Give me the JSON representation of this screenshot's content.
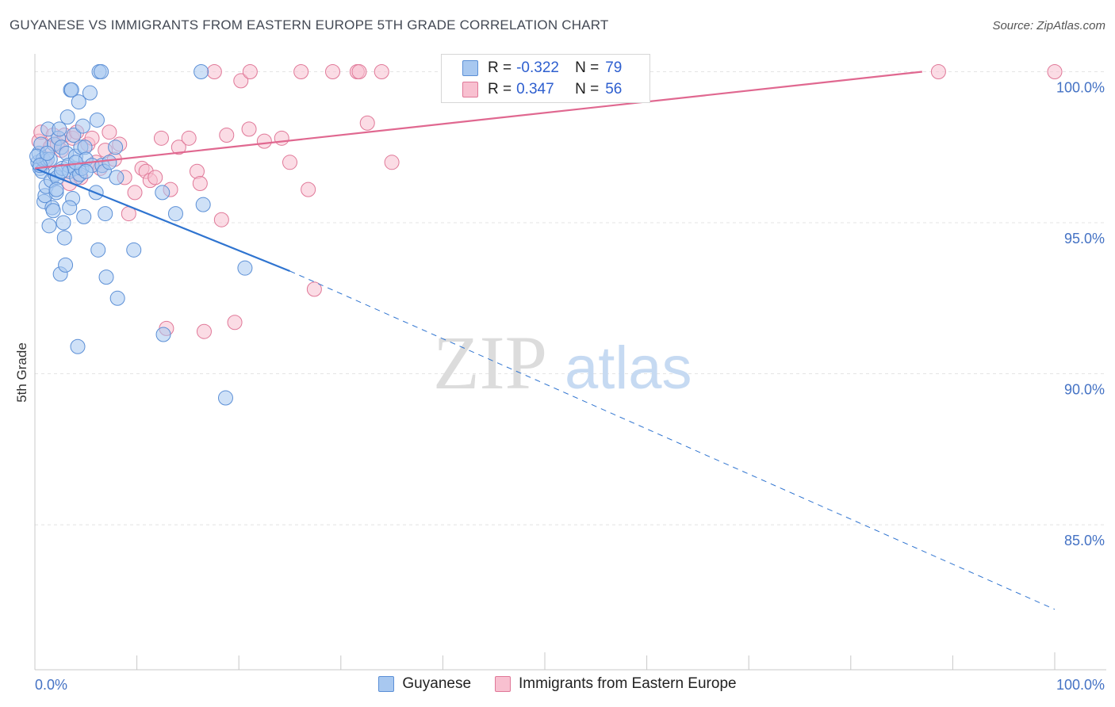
{
  "title": "GUYANESE VS IMMIGRANTS FROM EASTERN EUROPE 5TH GRADE CORRELATION CHART",
  "source": "Source: ZipAtlas.com",
  "watermark": {
    "zip": "ZIP",
    "atlas": "atlas"
  },
  "legend": {
    "r_label": "R =",
    "n_label": "N =",
    "rows": [
      {
        "name": "Guyanese",
        "r": "-0.322",
        "n": "79",
        "color": "#a8c8f0",
        "border": "#5b8fd6"
      },
      {
        "name": "Immigrants from Eastern Europe",
        "r": "0.347",
        "n": "56",
        "color": "#f8c0d0",
        "border": "#e07898"
      }
    ]
  },
  "chart_data": {
    "type": "scatter",
    "title": "GUYANESE VS IMMIGRANTS FROM EASTERN EUROPE 5TH GRADE CORRELATION CHART",
    "xlabel": "",
    "ylabel": "5th Grade",
    "xlim": [
      0,
      100
    ],
    "ylim": [
      80.2,
      100.8
    ],
    "x_tick_labels": [
      "0.0%",
      "100.0%"
    ],
    "y_ticks": [
      100,
      95,
      90,
      85
    ],
    "y_tick_labels": [
      "100.0%",
      "95.0%",
      "90.0%",
      "85.0%"
    ],
    "grid": true,
    "colors": {
      "guyanese": "#2f74d0",
      "eastern_europe": "#e06890"
    },
    "series": [
      {
        "name": "Guyanese",
        "color": "#a8c8f0",
        "border": "#5b8fd6",
        "points": [
          [
            0.3,
            97.0
          ],
          [
            0.4,
            97.3
          ],
          [
            0.5,
            96.8
          ],
          [
            0.6,
            97.6
          ],
          [
            0.7,
            96.7
          ],
          [
            0.8,
            97.1
          ],
          [
            0.9,
            95.7
          ],
          [
            1.0,
            95.9
          ],
          [
            1.1,
            96.2
          ],
          [
            1.2,
            97.1
          ],
          [
            1.3,
            98.1
          ],
          [
            1.4,
            94.9
          ],
          [
            1.5,
            97.1
          ],
          [
            1.6,
            96.4
          ],
          [
            1.7,
            95.5
          ],
          [
            1.8,
            95.4
          ],
          [
            1.9,
            97.6
          ],
          [
            2.0,
            96.6
          ],
          [
            2.1,
            96.0
          ],
          [
            2.2,
            96.5
          ],
          [
            2.3,
            97.8
          ],
          [
            2.4,
            98.1
          ],
          [
            2.5,
            93.3
          ],
          [
            2.6,
            97.5
          ],
          [
            2.7,
            96.8
          ],
          [
            2.8,
            95.0
          ],
          [
            2.9,
            94.5
          ],
          [
            3.0,
            93.6
          ],
          [
            3.1,
            97.3
          ],
          [
            3.2,
            98.5
          ],
          [
            3.3,
            96.9
          ],
          [
            3.4,
            96.7
          ],
          [
            3.5,
            99.4
          ],
          [
            3.6,
            99.4
          ],
          [
            3.7,
            95.8
          ],
          [
            3.8,
            97.9
          ],
          [
            3.9,
            96.8
          ],
          [
            4.0,
            97.2
          ],
          [
            4.1,
            96.5
          ],
          [
            4.2,
            90.9
          ],
          [
            4.3,
            99.0
          ],
          [
            4.4,
            96.6
          ],
          [
            4.5,
            97.5
          ],
          [
            4.6,
            96.8
          ],
          [
            4.7,
            98.2
          ],
          [
            4.8,
            95.2
          ],
          [
            4.9,
            97.5
          ],
          [
            5.0,
            97.1
          ],
          [
            5.4,
            99.3
          ],
          [
            5.6,
            96.9
          ],
          [
            6.0,
            96.0
          ],
          [
            6.1,
            98.4
          ],
          [
            6.2,
            94.1
          ],
          [
            6.3,
            100.0
          ],
          [
            6.5,
            100.0
          ],
          [
            6.6,
            96.9
          ],
          [
            6.8,
            96.7
          ],
          [
            6.9,
            95.3
          ],
          [
            7.0,
            93.2
          ],
          [
            7.3,
            97.0
          ],
          [
            7.9,
            97.5
          ],
          [
            8.0,
            96.5
          ],
          [
            8.1,
            92.5
          ],
          [
            9.7,
            94.1
          ],
          [
            12.5,
            96.0
          ],
          [
            12.6,
            91.3
          ],
          [
            13.8,
            95.3
          ],
          [
            16.3,
            100.0
          ],
          [
            16.5,
            95.6
          ],
          [
            18.7,
            89.2
          ],
          [
            20.6,
            93.5
          ],
          [
            0.2,
            97.2
          ],
          [
            0.5,
            96.9
          ],
          [
            1.2,
            97.3
          ],
          [
            2.1,
            96.1
          ],
          [
            2.6,
            96.7
          ],
          [
            3.4,
            95.5
          ],
          [
            4.0,
            97.0
          ],
          [
            5.0,
            96.7
          ]
        ]
      },
      {
        "name": "Immigrants from Eastern Europe",
        "color": "#f8c0d0",
        "border": "#e07898",
        "points": [
          [
            0.4,
            97.7
          ],
          [
            0.6,
            98.0
          ],
          [
            1.0,
            97.0
          ],
          [
            1.5,
            97.5
          ],
          [
            1.8,
            97.9
          ],
          [
            2.2,
            97.6
          ],
          [
            2.6,
            97.4
          ],
          [
            2.9,
            97.9
          ],
          [
            3.4,
            96.3
          ],
          [
            3.7,
            97.8
          ],
          [
            4.1,
            98.0
          ],
          [
            4.5,
            96.5
          ],
          [
            5.2,
            97.6
          ],
          [
            5.6,
            97.8
          ],
          [
            6.0,
            97.0
          ],
          [
            6.4,
            96.8
          ],
          [
            6.9,
            97.4
          ],
          [
            7.3,
            98.0
          ],
          [
            7.8,
            97.1
          ],
          [
            8.3,
            97.6
          ],
          [
            8.8,
            96.5
          ],
          [
            9.2,
            95.3
          ],
          [
            9.8,
            96.0
          ],
          [
            10.5,
            96.8
          ],
          [
            10.9,
            96.7
          ],
          [
            11.3,
            96.4
          ],
          [
            11.8,
            96.5
          ],
          [
            12.4,
            97.8
          ],
          [
            12.9,
            91.5
          ],
          [
            13.3,
            96.1
          ],
          [
            14.1,
            97.5
          ],
          [
            15.1,
            97.8
          ],
          [
            15.9,
            96.7
          ],
          [
            16.2,
            96.3
          ],
          [
            16.6,
            91.4
          ],
          [
            17.6,
            100.0
          ],
          [
            18.3,
            95.1
          ],
          [
            18.8,
            97.9
          ],
          [
            19.6,
            91.7
          ],
          [
            20.2,
            99.7
          ],
          [
            21.0,
            98.1
          ],
          [
            21.1,
            100.0
          ],
          [
            22.5,
            97.7
          ],
          [
            24.2,
            97.8
          ],
          [
            25.0,
            97.0
          ],
          [
            26.1,
            100.0
          ],
          [
            26.8,
            96.1
          ],
          [
            27.4,
            92.8
          ],
          [
            29.2,
            100.0
          ],
          [
            31.6,
            100.0
          ],
          [
            31.8,
            100.0
          ],
          [
            32.6,
            98.3
          ],
          [
            34.0,
            100.0
          ],
          [
            35.0,
            97.0
          ],
          [
            88.6,
            100.0
          ],
          [
            100.0,
            100.0
          ]
        ]
      }
    ],
    "trend_lines": [
      {
        "series": "Guyanese",
        "solid": [
          [
            0,
            96.8
          ],
          [
            25,
            93.4
          ]
        ],
        "dashed": [
          [
            25,
            93.4
          ],
          [
            100,
            82.2
          ]
        ]
      },
      {
        "series": "Immigrants from Eastern Europe",
        "solid": [
          [
            0,
            96.8
          ],
          [
            87,
            100.0
          ]
        ]
      }
    ]
  }
}
